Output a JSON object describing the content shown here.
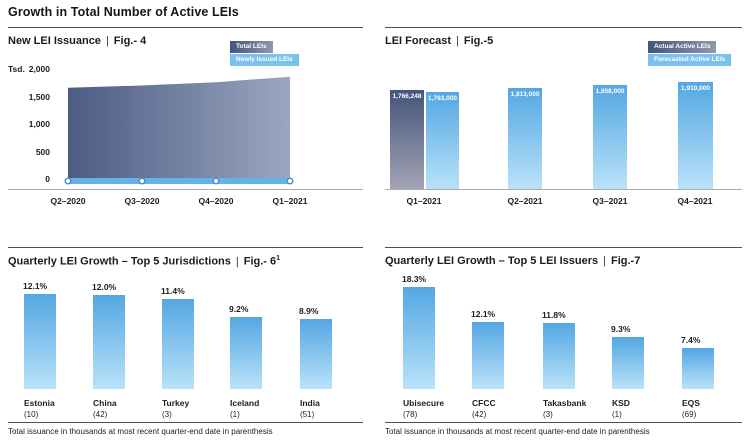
{
  "header": {
    "title": "Growth in Total Number of Active LEIs"
  },
  "labels": {
    "pipe": "|"
  },
  "footnote": "Total issuance in thousands at most recent quarter-end date in parenthesis",
  "colors": {
    "accent_blue": "#54a7e2",
    "accent_blue_light": "#b9e2f9",
    "dark_navy": "#44547c",
    "area_left": "#4b5b83",
    "area_right": "#9aa7bf",
    "legend_light": "#7cc1ee",
    "line_blue": "#65b2e8",
    "marker_stroke": "#3f8fcc",
    "rule_dark": "#4f4f4f",
    "axis_gray": "#ababab",
    "text_dark": "#1d1d1f"
  },
  "chart_data": [
    {
      "id": "fig4",
      "type": "area",
      "title": "New LEI Issuance",
      "fig": "Fig.- 4",
      "unit_label": "Tsd.",
      "legend": [
        {
          "label": "Total LEIs",
          "style": "dark"
        },
        {
          "label": "Newly Issued LEIs",
          "style": "light"
        }
      ],
      "x": [
        "Q2–2020",
        "Q3–2020",
        "Q4–2020",
        "Q1–2021"
      ],
      "series": [
        {
          "name": "Total LEIs",
          "values": [
            1660,
            1700,
            1760,
            1860
          ]
        },
        {
          "name": "Newly Issued LEIs",
          "values": [
            35,
            35,
            35,
            35
          ]
        }
      ],
      "ylim": [
        0,
        2000
      ],
      "yticks": [
        "2,000",
        "1,500",
        "1,000",
        "500",
        "0"
      ],
      "grid": false,
      "legend_position": "top-right"
    },
    {
      "id": "fig5",
      "type": "bar",
      "title": "LEI Forecast",
      "fig": "Fig.-5",
      "legend": [
        {
          "label": "Actual Active LEIs",
          "style": "dark"
        },
        {
          "label": "Forecasted Active LEIs",
          "style": "light"
        }
      ],
      "categories": [
        "Q1–2021",
        "Q2–2021",
        "Q3–2021",
        "Q4–2021"
      ],
      "series": [
        {
          "name": "Actual Active LEIs",
          "values": [
            1766248,
            null,
            null,
            null
          ]
        },
        {
          "name": "Forecasted Active LEIs",
          "values": [
            1763000,
            1813000,
            1858000,
            1910000
          ]
        }
      ],
      "bar_labels": [
        "1,766,248",
        "1,763,000",
        "1,813,000",
        "1,858,000",
        "1,910,000"
      ],
      "grid": false,
      "legend_position": "top-right"
    },
    {
      "id": "fig6",
      "type": "bar",
      "title": "Quarterly LEI Growth – Top 5 Jurisdictions",
      "fig": "Fig.- 6",
      "fig_sup": "1",
      "categories": [
        "Estonia",
        "China",
        "Turkey",
        "Iceland",
        "India"
      ],
      "count_labels": [
        "(10)",
        "(42)",
        "(3)",
        "(1)",
        "(51)"
      ],
      "values": [
        12.1,
        12.0,
        11.4,
        9.2,
        8.9
      ],
      "value_labels": [
        "12.1%",
        "12.0%",
        "11.4%",
        "9.2%",
        "8.9%"
      ],
      "ylabel": "",
      "grid": false
    },
    {
      "id": "fig7",
      "type": "bar",
      "title": "Quarterly LEI Growth – Top 5 LEI Issuers",
      "fig": "Fig.-7",
      "categories": [
        "Ubisecure",
        "CFCC",
        "Takasbank",
        "KSD",
        "EQS"
      ],
      "count_labels": [
        "(78)",
        "(42)",
        "(3)",
        "(1)",
        "(69)"
      ],
      "values": [
        18.3,
        12.1,
        11.8,
        9.3,
        7.4
      ],
      "value_labels": [
        "18.3%",
        "12.1%",
        "11.8%",
        "9.3%",
        "7.4%"
      ],
      "ylabel": "",
      "grid": false
    }
  ]
}
